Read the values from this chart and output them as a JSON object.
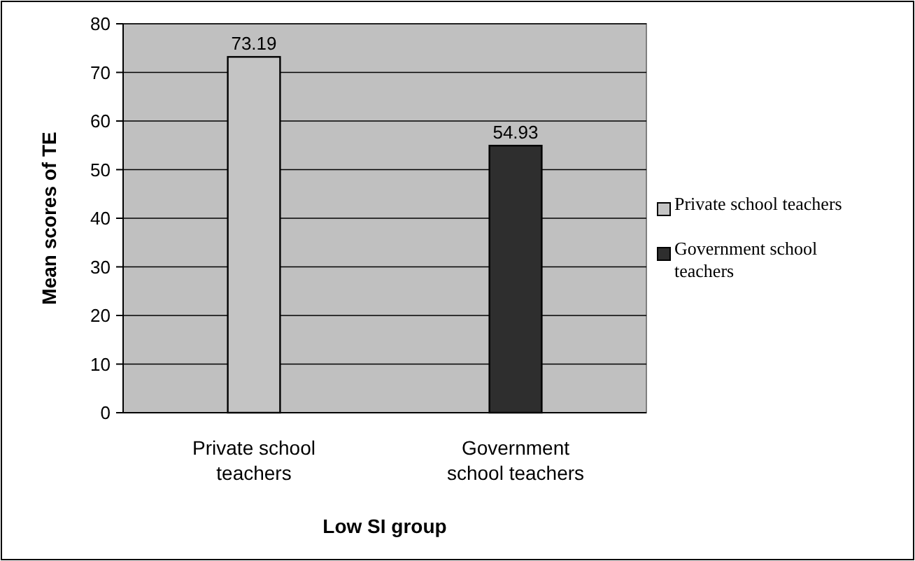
{
  "chart_data": {
    "type": "bar",
    "xlabel": "Low SI group",
    "ylabel": "Mean scores of TE",
    "categories": [
      "Private school teachers",
      "Government school teachers"
    ],
    "series": [
      {
        "name": "Private school teachers",
        "color": "#c4c4c4",
        "values": [
          73.19,
          null
        ]
      },
      {
        "name": "Government school teachers",
        "color": "#2e2e2e",
        "values": [
          null,
          54.93
        ]
      }
    ],
    "ylim": [
      0,
      80
    ],
    "yticks": [
      0,
      10,
      20,
      30,
      40,
      50,
      60,
      70,
      80
    ],
    "grid": "y",
    "legend": "right",
    "data_labels": true
  }
}
